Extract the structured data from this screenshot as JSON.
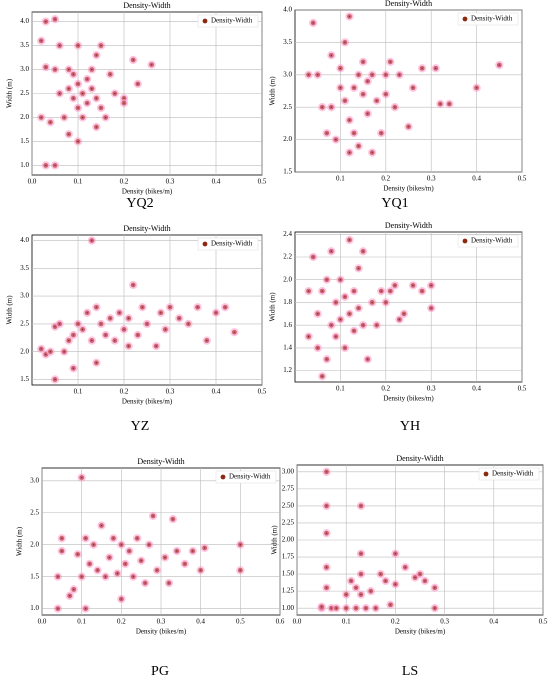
{
  "chart_data": [
    {
      "type": "scatter",
      "title": "Density-Width",
      "x_label": "Density (bikes/m)",
      "y_label": "Width (m)",
      "caption": "YQ2",
      "grid": true,
      "legend": "upper right",
      "xlim": [
        0,
        0.5
      ],
      "xticks": [
        {
          "value": 0,
          "label": "0.0"
        },
        0.1,
        0.2,
        0.3,
        0.4,
        0.5
      ],
      "ylim": [
        0.8,
        4.2
      ],
      "yticks": [
        {
          "value": 1,
          "label": "1.0"
        },
        1.5,
        {
          "value": 2,
          "label": "2.0"
        },
        2.5,
        {
          "value": 3,
          "label": "3.0"
        },
        3.5,
        {
          "value": 4,
          "label": "4.0"
        }
      ],
      "series": [
        {
          "name": "Density-Width",
          "color": "#8b2a10",
          "x": [
            0.02,
            0.03,
            0.05,
            0.03,
            0.05,
            0.06,
            0.04,
            0.05,
            0.03,
            0.07,
            0.08,
            0.08,
            0.09,
            0.09,
            0.1,
            0.1,
            0.1,
            0.11,
            0.11,
            0.12,
            0.12,
            0.13,
            0.13,
            0.14,
            0.14,
            0.15,
            0.15,
            0.16,
            0.17,
            0.18,
            0.2,
            0.2,
            0.22,
            0.23,
            0.26,
            0.08,
            0.1,
            0.14,
            0.06,
            0.02
          ],
          "values": [
            2.0,
            4.0,
            4.05,
            3.05,
            3.0,
            2.5,
            1.9,
            1.0,
            1.0,
            2.0,
            3.0,
            2.6,
            2.4,
            2.9,
            2.7,
            2.2,
            3.5,
            2.5,
            2.0,
            2.8,
            2.3,
            3.0,
            2.6,
            2.4,
            3.3,
            2.2,
            3.5,
            2.0,
            2.9,
            2.5,
            2.4,
            2.3,
            3.2,
            2.7,
            3.1,
            1.65,
            1.5,
            1.8,
            3.5,
            3.6
          ]
        }
      ]
    },
    {
      "type": "scatter",
      "title": "Density-Width",
      "x_label": "Density (bikes/m)",
      "y_label": "Width (m)",
      "caption": "YQ1",
      "grid": true,
      "legend": "upper right",
      "xlim": [
        0,
        0.5
      ],
      "xticks": [
        0.1,
        0.2,
        0.3,
        0.4,
        0.5
      ],
      "ylim": [
        1.5,
        4.0
      ],
      "yticks": [
        1.5,
        {
          "value": 2,
          "label": "2.0"
        },
        2.5,
        {
          "value": 3,
          "label": "3.0"
        },
        3.5,
        {
          "value": 4,
          "label": "4.0"
        }
      ],
      "series": [
        {
          "name": "Density-Width",
          "color": "#8b2a10",
          "x": [
            0.03,
            0.04,
            0.05,
            0.06,
            0.07,
            0.08,
            0.08,
            0.09,
            0.1,
            0.1,
            0.11,
            0.11,
            0.12,
            0.12,
            0.13,
            0.13,
            0.14,
            0.14,
            0.15,
            0.15,
            0.16,
            0.16,
            0.17,
            0.17,
            0.18,
            0.19,
            0.2,
            0.2,
            0.21,
            0.22,
            0.23,
            0.25,
            0.26,
            0.28,
            0.31,
            0.32,
            0.34,
            0.4,
            0.45,
            0.12
          ],
          "values": [
            3.0,
            3.8,
            3.0,
            2.5,
            2.1,
            2.5,
            3.3,
            2.0,
            2.8,
            3.1,
            2.6,
            3.5,
            3.9,
            2.3,
            2.8,
            2.1,
            3.0,
            1.9,
            2.7,
            3.2,
            2.4,
            2.9,
            3.0,
            1.8,
            2.6,
            2.1,
            3.0,
            2.7,
            3.2,
            2.5,
            3.0,
            2.2,
            2.8,
            3.1,
            3.1,
            2.55,
            2.55,
            2.8,
            3.15,
            1.8
          ]
        }
      ]
    },
    {
      "type": "scatter",
      "title": "Density-Width",
      "x_label": "Density (bikes/m)",
      "y_label": "Width (m)",
      "caption": "YZ",
      "grid": true,
      "legend": "upper right",
      "xlim": [
        0,
        0.5
      ],
      "xticks": [
        0.1,
        0.2,
        0.3,
        0.4,
        0.5
      ],
      "ylim": [
        1.4,
        4.1
      ],
      "yticks": [
        1.5,
        {
          "value": 2,
          "label": "2.0"
        },
        2.5,
        {
          "value": 3,
          "label": "3.0"
        },
        3.5,
        {
          "value": 4,
          "label": "4.0"
        }
      ],
      "series": [
        {
          "name": "Density-Width",
          "color": "#8b2a10",
          "x": [
            0.02,
            0.03,
            0.04,
            0.05,
            0.05,
            0.06,
            0.07,
            0.08,
            0.09,
            0.09,
            0.1,
            0.11,
            0.12,
            0.13,
            0.13,
            0.14,
            0.14,
            0.15,
            0.16,
            0.17,
            0.18,
            0.19,
            0.2,
            0.21,
            0.22,
            0.23,
            0.24,
            0.25,
            0.27,
            0.28,
            0.29,
            0.3,
            0.32,
            0.34,
            0.36,
            0.38,
            0.4,
            0.42,
            0.44,
            0.21
          ],
          "values": [
            2.05,
            1.95,
            2.0,
            1.5,
            2.45,
            2.5,
            2.0,
            2.2,
            2.3,
            1.7,
            2.5,
            2.4,
            2.7,
            2.2,
            4.0,
            1.8,
            2.8,
            2.5,
            2.3,
            2.6,
            2.2,
            2.7,
            2.4,
            2.6,
            3.2,
            2.3,
            2.8,
            2.5,
            2.1,
            2.7,
            2.4,
            2.8,
            2.6,
            2.5,
            2.8,
            2.2,
            2.7,
            2.8,
            2.35,
            2.1
          ]
        }
      ]
    },
    {
      "type": "scatter",
      "title": "Density-Width",
      "x_label": "Density (bikes/m)",
      "y_label": "Width (m)",
      "caption": "YH",
      "grid": true,
      "legend": "upper right",
      "xlim": [
        0,
        0.5
      ],
      "xticks": [
        0.1,
        0.2,
        0.3,
        0.4,
        0.5
      ],
      "ylim": [
        1.1,
        2.42
      ],
      "yticks": [
        1.2,
        1.4,
        1.6,
        1.8,
        {
          "value": 2,
          "label": "2.0"
        },
        2.2,
        2.4
      ],
      "series": [
        {
          "name": "Density-Width",
          "color": "#8b2a10",
          "x": [
            0.03,
            0.03,
            0.04,
            0.05,
            0.05,
            0.06,
            0.06,
            0.07,
            0.07,
            0.08,
            0.08,
            0.09,
            0.09,
            0.1,
            0.1,
            0.11,
            0.11,
            0.12,
            0.12,
            0.13,
            0.13,
            0.14,
            0.14,
            0.15,
            0.15,
            0.16,
            0.17,
            0.18,
            0.19,
            0.2,
            0.21,
            0.22,
            0.23,
            0.24,
            0.26,
            0.28,
            0.3,
            0.3
          ],
          "values": [
            1.9,
            1.5,
            2.2,
            1.7,
            1.4,
            1.9,
            1.15,
            2.0,
            1.3,
            1.6,
            2.25,
            1.8,
            1.5,
            1.65,
            2.0,
            1.4,
            1.85,
            2.35,
            1.7,
            1.9,
            1.55,
            2.1,
            1.75,
            1.6,
            2.25,
            1.3,
            1.8,
            1.6,
            1.9,
            1.8,
            1.9,
            1.95,
            1.65,
            1.7,
            1.95,
            1.9,
            1.75,
            1.95
          ]
        }
      ]
    },
    {
      "type": "scatter",
      "title": "Density-Width",
      "x_label": "Density (bikes/m)",
      "y_label": "Width (m)",
      "caption": "PG",
      "grid": true,
      "legend": "upper right",
      "xlim": [
        0,
        0.6
      ],
      "xticks": [
        {
          "value": 0,
          "label": "0.0"
        },
        0.1,
        0.2,
        0.3,
        0.4,
        0.5,
        0.6
      ],
      "ylim": [
        0.9,
        3.2
      ],
      "yticks": [
        {
          "value": 1,
          "label": "1.0"
        },
        1.5,
        {
          "value": 2,
          "label": "2.0"
        },
        2.5,
        {
          "value": 3,
          "label": "3.0"
        }
      ],
      "series": [
        {
          "name": "Density-Width",
          "color": "#8b2a10",
          "x": [
            0.04,
            0.04,
            0.05,
            0.05,
            0.07,
            0.08,
            0.09,
            0.1,
            0.1,
            0.11,
            0.11,
            0.12,
            0.13,
            0.14,
            0.15,
            0.16,
            0.17,
            0.18,
            0.19,
            0.2,
            0.2,
            0.21,
            0.22,
            0.23,
            0.24,
            0.25,
            0.26,
            0.27,
            0.28,
            0.29,
            0.31,
            0.32,
            0.33,
            0.34,
            0.36,
            0.38,
            0.4,
            0.41,
            0.5,
            0.5
          ],
          "values": [
            1.0,
            1.5,
            1.9,
            2.1,
            1.2,
            1.3,
            1.85,
            1.5,
            3.05,
            2.1,
            1.0,
            1.7,
            2.0,
            1.6,
            2.3,
            1.5,
            1.8,
            2.1,
            1.55,
            2.0,
            1.15,
            1.7,
            1.9,
            1.5,
            2.1,
            1.75,
            1.4,
            2.0,
            2.45,
            1.6,
            1.8,
            1.4,
            2.4,
            1.9,
            1.7,
            1.9,
            1.6,
            1.95,
            2.0,
            1.6
          ]
        }
      ]
    },
    {
      "type": "scatter",
      "title": "Density-Width",
      "x_label": "Density (bikes/m)",
      "y_label": "Width (m)",
      "caption": "LS",
      "grid": true,
      "legend": "upper right",
      "xlim": [
        0,
        0.5
      ],
      "xticks": [
        {
          "value": 0,
          "label": "0.0"
        },
        0.1,
        0.2,
        0.3,
        0.4,
        0.5
      ],
      "ylim": [
        0.9,
        3.1
      ],
      "yticks": [
        {
          "value": 1,
          "label": "1.00"
        },
        1.25,
        {
          "value": 1.5,
          "label": "1.50"
        },
        1.75,
        {
          "value": 2,
          "label": "2.00"
        },
        2.25,
        {
          "value": 2.5,
          "label": "2.50"
        },
        2.75,
        {
          "value": 3,
          "label": "3.00"
        }
      ],
      "series": [
        {
          "name": "Density-Width",
          "color": "#8b2a10",
          "x": [
            0.05,
            0.05,
            0.06,
            0.06,
            0.06,
            0.06,
            0.06,
            0.07,
            0.08,
            0.1,
            0.1,
            0.11,
            0.12,
            0.12,
            0.13,
            0.13,
            0.13,
            0.13,
            0.14,
            0.15,
            0.16,
            0.17,
            0.18,
            0.19,
            0.2,
            0.2,
            0.22,
            0.24,
            0.25,
            0.26,
            0.28,
            0.28
          ],
          "values": [
            1.0,
            1.02,
            3.0,
            2.5,
            2.1,
            1.6,
            1.3,
            1.0,
            1.0,
            1.0,
            1.2,
            1.4,
            1.0,
            1.3,
            2.5,
            1.8,
            1.5,
            1.2,
            1.0,
            1.25,
            1.0,
            1.5,
            1.4,
            1.05,
            1.8,
            1.35,
            1.6,
            1.45,
            1.5,
            1.4,
            1.3,
            1.0
          ]
        }
      ]
    }
  ]
}
